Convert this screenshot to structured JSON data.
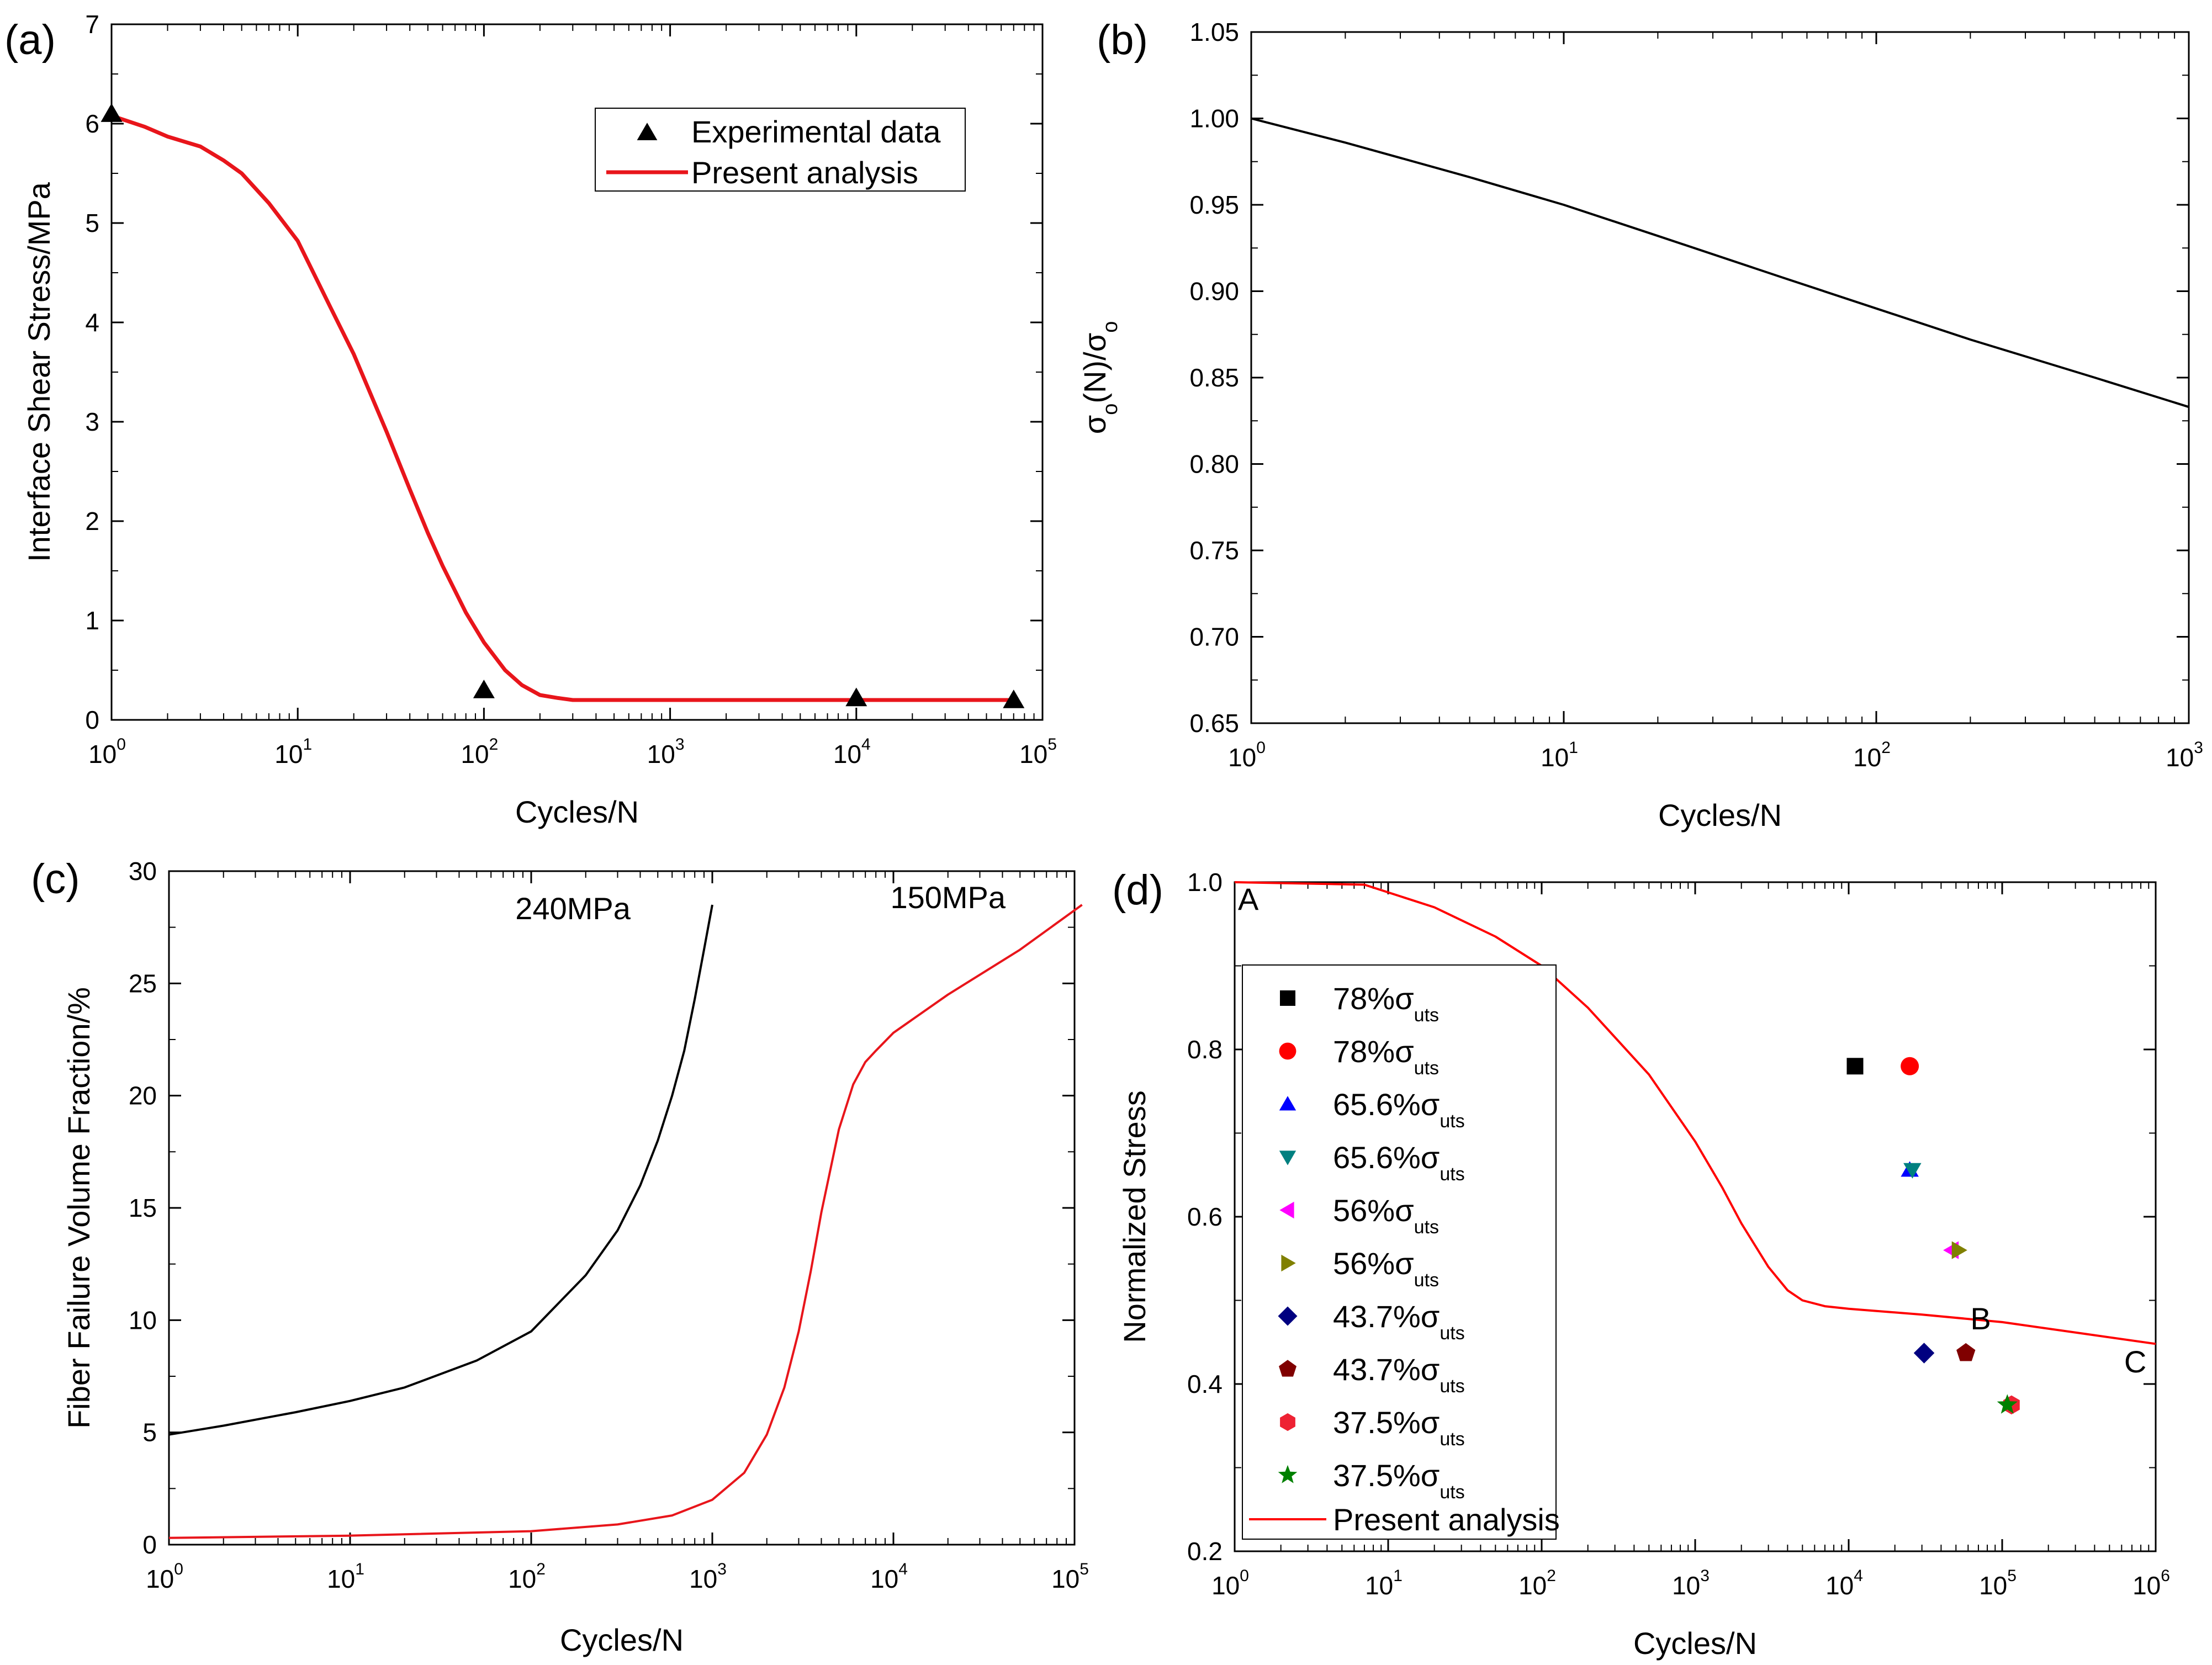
{
  "chart_data": [
    {
      "panel": "(a)",
      "type": "line",
      "xlabel": "Cycles/N",
      "ylabel": "Interface Shear Stress/MPa",
      "xscale": "log",
      "xlim": [
        1,
        100000
      ],
      "ylim": [
        0,
        7
      ],
      "x_ticks": [
        1,
        10,
        100,
        1000,
        10000,
        100000
      ],
      "x_tick_base": "10",
      "x_tick_exponents": [
        "0",
        "1",
        "2",
        "3",
        "4",
        "5"
      ],
      "y_ticks": [
        "0",
        "1",
        "2",
        "3",
        "4",
        "5",
        "6",
        "7"
      ],
      "legend_position": "top-right",
      "grid": false,
      "series": [
        {
          "name": "Experimental data",
          "kind": "scatter",
          "marker": "triangle",
          "color": "#000000",
          "x": [
            1,
            100,
            10000,
            70000
          ],
          "y": [
            6.1,
            0.3,
            0.22,
            0.2
          ]
        },
        {
          "name": "Present analysis",
          "kind": "line",
          "color": "#e8151b",
          "x": [
            1,
            1.5,
            2,
            3,
            4,
            5,
            7,
            10,
            15,
            20,
            30,
            40,
            50,
            60,
            80,
            100,
            130,
            160,
            200,
            250,
            300,
            400,
            600,
            1000,
            10000,
            70000
          ],
          "y": [
            6.08,
            5.97,
            5.87,
            5.77,
            5.63,
            5.5,
            5.2,
            4.82,
            4.15,
            3.68,
            2.9,
            2.32,
            1.88,
            1.55,
            1.08,
            0.78,
            0.5,
            0.35,
            0.25,
            0.22,
            0.2,
            0.2,
            0.2,
            0.2,
            0.2,
            0.2
          ]
        }
      ]
    },
    {
      "panel": "(b)",
      "type": "line",
      "xlabel": "Cycles/N",
      "ylabel": "σo(N)/σo",
      "xscale": "log",
      "xlim": [
        1,
        1000
      ],
      "ylim": [
        0.65,
        1.05
      ],
      "x_ticks": [
        1,
        10,
        100,
        1000
      ],
      "x_tick_base": "10",
      "x_tick_exponents": [
        "0",
        "1",
        "2",
        "3"
      ],
      "y_ticks": [
        "0.65",
        "0.70",
        "0.75",
        "0.80",
        "0.85",
        "0.90",
        "0.95",
        "1.00",
        "1.05"
      ],
      "grid": false,
      "series": [
        {
          "kind": "line",
          "color": "#000000",
          "x": [
            1,
            2,
            5,
            10,
            20,
            50,
            100,
            200,
            500,
            1000
          ],
          "y": [
            1.0,
            0.986,
            0.966,
            0.95,
            0.932,
            0.908,
            0.89,
            0.872,
            0.85,
            0.833
          ]
        }
      ]
    },
    {
      "panel": "(c)",
      "type": "line",
      "xlabel": "Cycles/N",
      "ylabel": "Fiber Failure Volume Fraction/%",
      "xscale": "log",
      "xlim": [
        1,
        100000
      ],
      "ylim": [
        0,
        30
      ],
      "x_ticks": [
        1,
        10,
        100,
        1000,
        10000,
        100000
      ],
      "x_tick_base": "10",
      "x_tick_exponents": [
        "0",
        "1",
        "2",
        "3",
        "4",
        "5"
      ],
      "y_ticks": [
        "0",
        "5",
        "10",
        "15",
        "20",
        "25",
        "30"
      ],
      "grid": false,
      "annotations": [
        {
          "text": "240MPa",
          "x": 170,
          "y": 28.3
        },
        {
          "text": "150MPa",
          "x": 20000,
          "y": 28.8
        }
      ],
      "series": [
        {
          "kind": "line",
          "color": "#000000",
          "x": [
            1,
            2,
            5,
            10,
            20,
            50,
            100,
            200,
            300,
            400,
            500,
            600,
            700,
            800,
            900,
            1000
          ],
          "y": [
            4.9,
            5.3,
            5.9,
            6.4,
            7.0,
            8.2,
            9.5,
            12.0,
            14.0,
            16.0,
            18.0,
            20.0,
            22.0,
            24.3,
            26.5,
            28.5
          ]
        },
        {
          "kind": "line",
          "color": "#e8151b",
          "x": [
            1,
            10,
            100,
            300,
            600,
            1000,
            1500,
            2000,
            2500,
            3000,
            3500,
            4000,
            5000,
            6000,
            7000,
            8000,
            10000,
            20000,
            50000,
            110000
          ],
          "y": [
            0.3,
            0.4,
            0.6,
            0.9,
            1.3,
            2.0,
            3.2,
            4.9,
            7.0,
            9.5,
            12.2,
            14.8,
            18.5,
            20.5,
            21.5,
            22.0,
            22.8,
            24.5,
            26.5,
            28.5
          ]
        }
      ]
    },
    {
      "panel": "(d)",
      "type": "scatter",
      "xlabel": "Cycles/N",
      "ylabel": "Normalized Stress",
      "xscale": "log",
      "xlim": [
        1,
        1000000
      ],
      "ylim": [
        0.2,
        1.0
      ],
      "x_ticks": [
        1,
        10,
        100,
        1000,
        10000,
        100000,
        1000000
      ],
      "x_tick_base": "10",
      "x_tick_exponents": [
        "0",
        "1",
        "2",
        "3",
        "4",
        "5",
        "6"
      ],
      "y_ticks": [
        "0.2",
        "0.4",
        "0.6",
        "0.8",
        "1.0"
      ],
      "legend_position": "left",
      "grid": false,
      "annotations": [
        {
          "text": "A",
          "x": 1,
          "y": 1.0
        },
        {
          "text": "B",
          "x": 80000,
          "y": 0.485
        },
        {
          "text": "C",
          "x": 800000,
          "y": 0.447
        }
      ],
      "series": [
        {
          "name": "78%",
          "sub": "uts",
          "marker": "square",
          "color": "#000000",
          "x": [
            11000
          ],
          "y": [
            0.78
          ]
        },
        {
          "name": "78%",
          "sub": "uts",
          "marker": "circle",
          "color": "#ff0000",
          "x": [
            25000
          ],
          "y": [
            0.78
          ]
        },
        {
          "name": "65.6%",
          "sub": "uts",
          "marker": "triangle-up",
          "color": "#0000ff",
          "x": [
            25000
          ],
          "y": [
            0.656
          ]
        },
        {
          "name": "65.6%",
          "sub": "uts",
          "marker": "triangle-down",
          "color": "#008080",
          "x": [
            26000
          ],
          "y": [
            0.656
          ]
        },
        {
          "name": "56%",
          "sub": "uts",
          "marker": "triangle-left",
          "color": "#ff00ff",
          "x": [
            47000
          ],
          "y": [
            0.56
          ]
        },
        {
          "name": "56%",
          "sub": "uts",
          "marker": "triangle-right",
          "color": "#808000",
          "x": [
            52000
          ],
          "y": [
            0.56
          ]
        },
        {
          "name": "43.7%",
          "sub": "uts",
          "marker": "diamond",
          "color": "#000080",
          "x": [
            31000
          ],
          "y": [
            0.437
          ]
        },
        {
          "name": "43.7%",
          "sub": "uts",
          "marker": "pentagon",
          "color": "#800000",
          "x": [
            58000
          ],
          "y": [
            0.437
          ]
        },
        {
          "name": "37.5%",
          "sub": "uts",
          "marker": "hexagon",
          "color": "#ee2233",
          "x": [
            115000
          ],
          "y": [
            0.375
          ]
        },
        {
          "name": "37.5%",
          "sub": "uts",
          "marker": "star",
          "color": "#008000",
          "x": [
            108000
          ],
          "y": [
            0.375
          ]
        },
        {
          "name": "Present analysis",
          "kind": "line",
          "color": "#ff0000",
          "x": [
            1,
            7,
            20,
            50,
            100,
            200,
            500,
            1000,
            1500,
            2000,
            3000,
            4000,
            5000,
            7000,
            10000,
            30000,
            100000,
            1000000
          ],
          "y": [
            1.0,
            0.997,
            0.97,
            0.935,
            0.9,
            0.85,
            0.77,
            0.69,
            0.635,
            0.592,
            0.54,
            0.512,
            0.5,
            0.493,
            0.49,
            0.483,
            0.474,
            0.448
          ]
        }
      ]
    }
  ]
}
